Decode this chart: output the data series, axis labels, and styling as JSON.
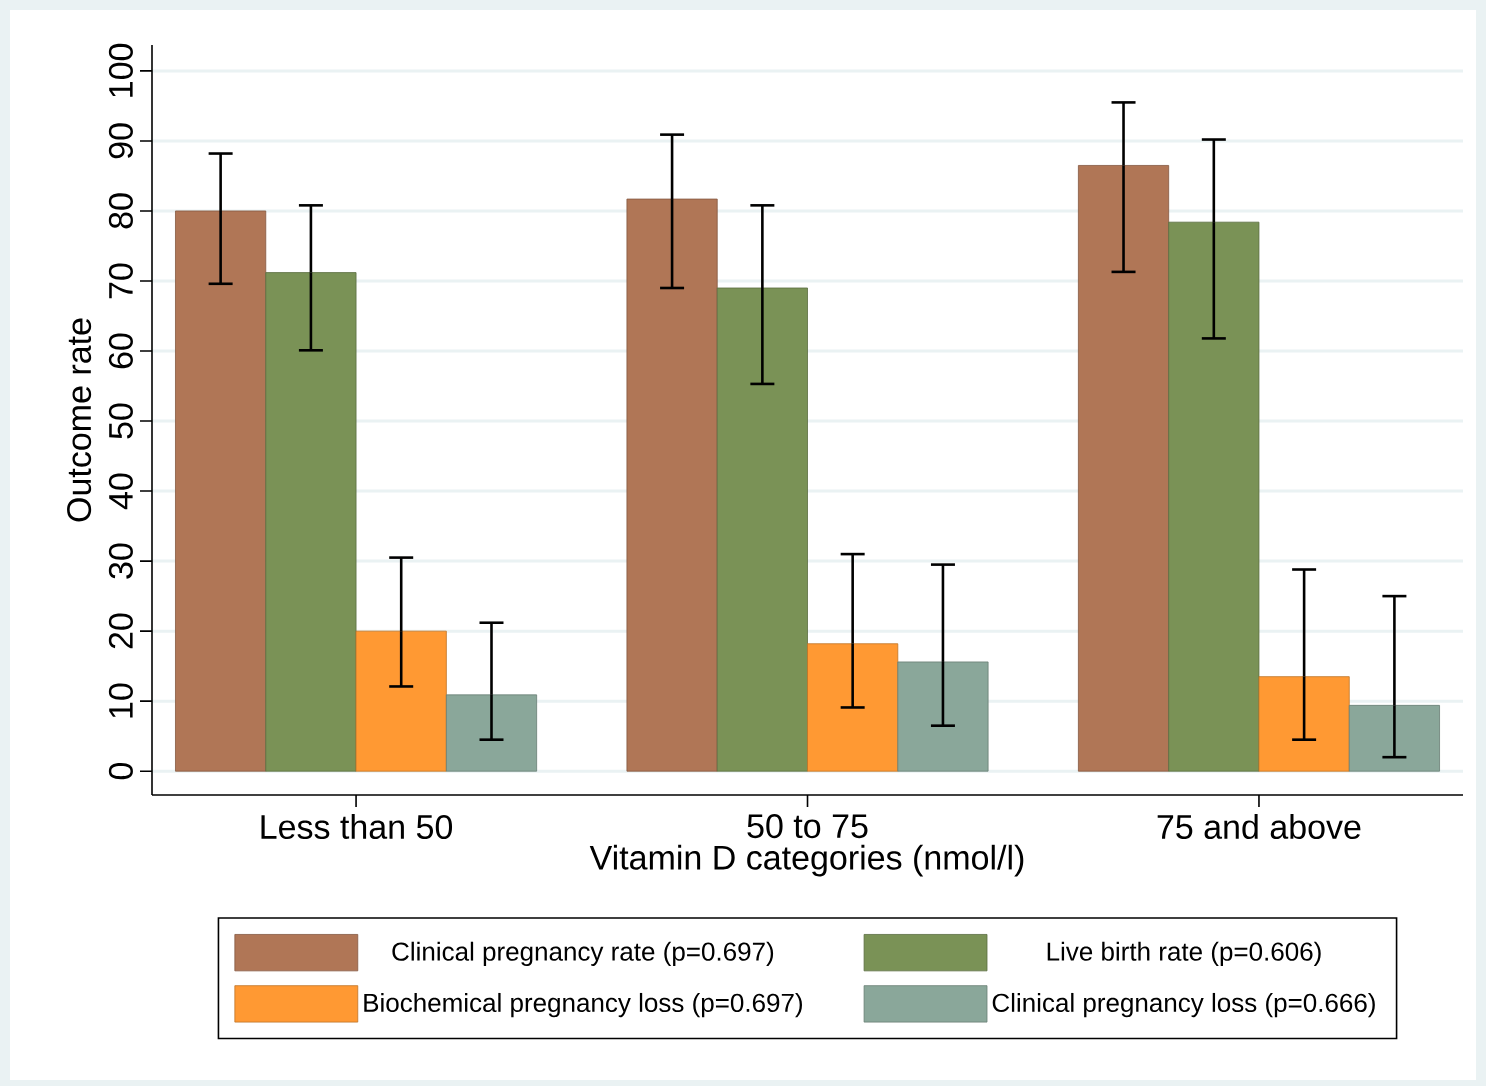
{
  "chart_data": {
    "type": "bar",
    "xlabel": "Vitamin D categories (nmol/l)",
    "ylabel": "Outcome rate",
    "categories": [
      "Less than 50",
      "50 to 75",
      "75 and above"
    ],
    "series": [
      {
        "name": "Clinical pregnancy rate (p=0.697)",
        "color": "#b07656",
        "values": [
          80.0,
          81.7,
          86.5
        ],
        "errors": [
          [
            69.6,
            88.2
          ],
          [
            69.0,
            90.9
          ],
          [
            71.3,
            95.5
          ]
        ]
      },
      {
        "name": "Live birth rate (p=0.606)",
        "color": "#7a9256",
        "values": [
          71.2,
          69.0,
          78.4
        ],
        "errors": [
          [
            60.1,
            80.8
          ],
          [
            55.3,
            80.8
          ],
          [
            61.8,
            90.2
          ]
        ]
      },
      {
        "name": "Biochemical pregnancy loss (p=0.697)",
        "color": "#ff9933",
        "values": [
          20.0,
          18.2,
          13.5
        ],
        "errors": [
          [
            12.1,
            30.5
          ],
          [
            9.1,
            31.0
          ],
          [
            4.5,
            28.8
          ]
        ]
      },
      {
        "name": "Clinical pregnancy loss (p=0.666)",
        "color": "#8aa79a",
        "values": [
          10.9,
          15.6,
          9.4
        ],
        "errors": [
          [
            4.5,
            21.2
          ],
          [
            6.5,
            29.5
          ],
          [
            2.0,
            25.0
          ]
        ]
      }
    ],
    "ylim": [
      -3.4,
      103.7
    ],
    "yticks": [
      0,
      10,
      20,
      30,
      40,
      50,
      60,
      70,
      80,
      90,
      100
    ],
    "grid": "y",
    "legend": "bottom"
  }
}
